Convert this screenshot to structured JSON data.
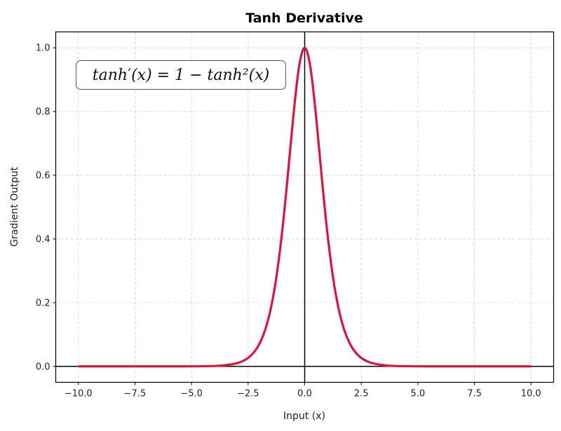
{
  "chart_data": {
    "type": "line",
    "title": "Tanh Derivative",
    "xlabel": "Input (x)",
    "ylabel": "Gradient Output",
    "xlim": [
      -11,
      11
    ],
    "ylim": [
      -0.05,
      1.05
    ],
    "grid": true,
    "xticks": [
      "−10.0",
      "−7.5",
      "−5.0",
      "−2.5",
      "0.0",
      "2.5",
      "5.0",
      "7.5",
      "10.0"
    ],
    "xtick_values": [
      -10,
      -7.5,
      -5,
      -2.5,
      0,
      2.5,
      5,
      7.5,
      10
    ],
    "yticks": [
      "0.0",
      "0.2",
      "0.4",
      "0.6",
      "0.8",
      "1.0"
    ],
    "ytick_values": [
      0,
      0.2,
      0.4,
      0.6,
      0.8,
      1.0
    ],
    "annotation": "tanh′(x) = 1 − tanh²(x)",
    "reference_lines": {
      "horizontal": 0,
      "vertical": 0,
      "color": "#000000"
    },
    "series": [
      {
        "color": "#DC143C",
        "x": [
          -10,
          -8,
          -6,
          -5,
          -4,
          -3.5,
          -3,
          -2.75,
          -2.5,
          -2.25,
          -2,
          -1.75,
          -1.5,
          -1.25,
          -1,
          -0.75,
          -0.5,
          -0.25,
          0,
          0.25,
          0.5,
          0.75,
          1,
          1.25,
          1.5,
          1.75,
          2,
          2.25,
          2.5,
          2.75,
          3,
          3.5,
          4,
          5,
          6,
          8,
          10
        ],
        "y": [
          0,
          0,
          0,
          0.0002,
          0.0013,
          0.0036,
          0.0099,
          0.0162,
          0.0266,
          0.0435,
          0.0707,
          0.1138,
          0.1807,
          0.2804,
          0.42,
          0.5966,
          0.7864,
          0.94,
          1.0,
          0.94,
          0.7864,
          0.5966,
          0.42,
          0.2804,
          0.1807,
          0.1138,
          0.0707,
          0.0435,
          0.0266,
          0.0162,
          0.0099,
          0.0036,
          0.0013,
          0.0002,
          0,
          0,
          0
        ]
      }
    ]
  }
}
